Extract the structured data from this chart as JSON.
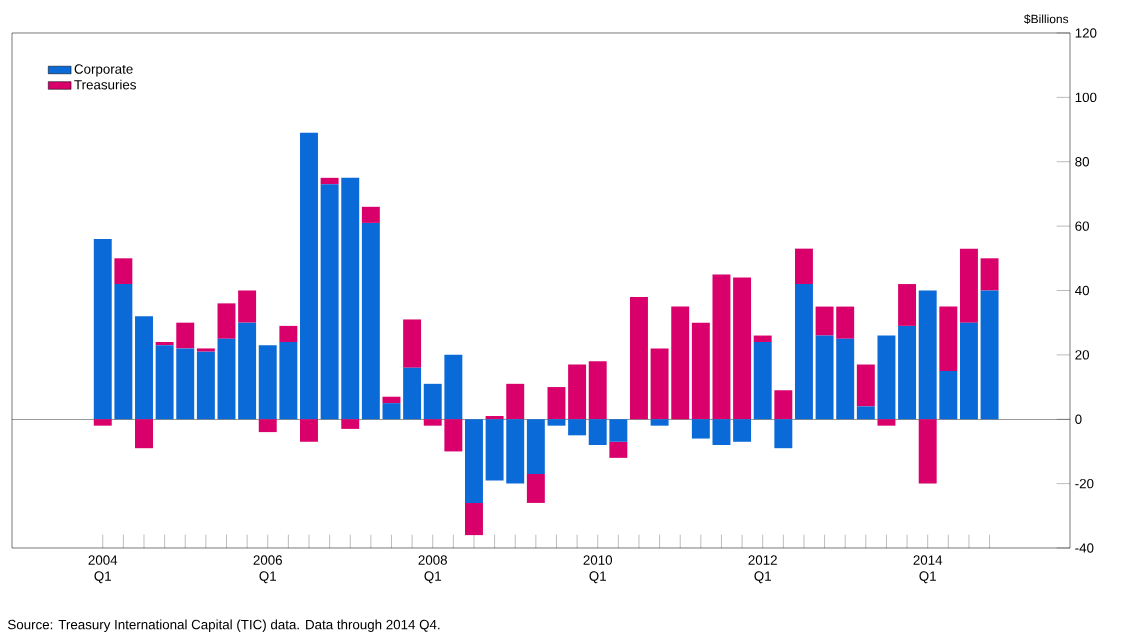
{
  "chart_data": {
    "type": "bar",
    "stacked": true,
    "ylabel": "$Billions",
    "categories": [
      "2004 Q1",
      null,
      null,
      null,
      null,
      null,
      null,
      null,
      "2006 Q1",
      null,
      null,
      null,
      null,
      null,
      null,
      null,
      "2008 Q1",
      null,
      null,
      null,
      null,
      null,
      null,
      null,
      "2010 Q1",
      null,
      null,
      null,
      null,
      null,
      null,
      null,
      "2012 Q1",
      null,
      null,
      null,
      null,
      null,
      null,
      null,
      "2014 Q1",
      null,
      null,
      null
    ],
    "series": [
      {
        "name": "Corporate",
        "color": "#0a6ad8",
        "values": [
          56,
          42,
          32,
          23,
          22,
          21,
          25,
          30,
          23,
          24,
          89,
          73,
          75,
          61,
          5,
          16,
          11,
          20,
          -26,
          -19,
          -20,
          -17,
          -2,
          -5,
          -8,
          -7,
          0,
          -2,
          0,
          -6,
          -8,
          -7,
          24,
          -9,
          42,
          26,
          25,
          4,
          26,
          29,
          40,
          15,
          30,
          40
        ]
      },
      {
        "name": "Treasuries",
        "color": "#d9006c",
        "values": [
          -2,
          8,
          -9,
          1,
          8,
          1,
          11,
          10,
          -4,
          5,
          -7,
          2,
          -3,
          5,
          2,
          15,
          -2,
          -10,
          -10,
          1,
          11,
          -9,
          10,
          17,
          18,
          -5,
          38,
          22,
          35,
          30,
          45,
          44,
          2,
          9,
          11,
          9,
          10,
          13,
          -2,
          13,
          -20,
          20,
          23,
          10
        ]
      }
    ],
    "ylim": [
      -40,
      120
    ],
    "yticks": [
      -40,
      -20,
      0,
      20,
      40,
      60,
      80,
      100,
      120
    ],
    "legend": "top left",
    "ref_lines": [
      {
        "axis": "y",
        "value": 0
      }
    ],
    "annotations": [
      "Source: Treasury International Capital (TIC) data. Data through 2014 Q4."
    ]
  }
}
